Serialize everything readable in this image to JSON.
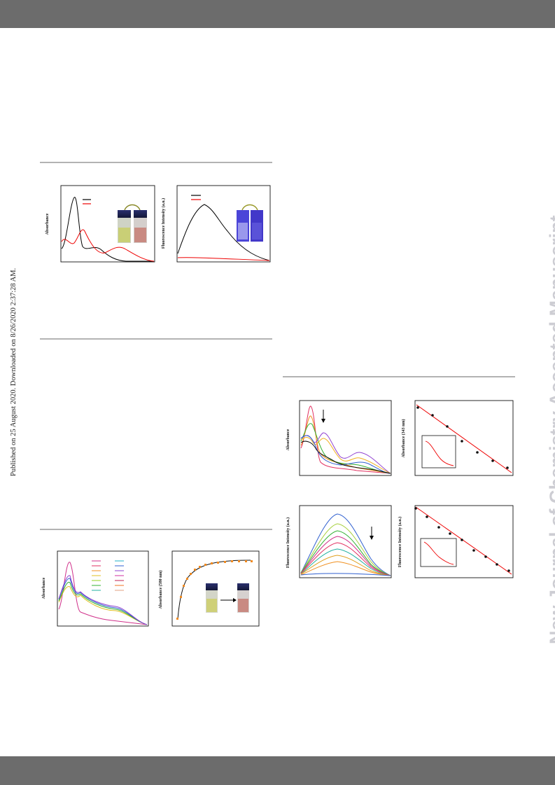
{
  "side_note": "Published on 25 August 2020. Downloaded on 8/26/2020 2:37:28 AM.",
  "watermark": "New Journal of Chemistry Accepted Manuscript",
  "panels": {
    "uv_pair": {
      "ylabel": "Absorbance"
    },
    "fl_pair": {
      "ylabel": "Fluorescence Intensity (a.u.)"
    },
    "uv_titration": {
      "ylabel": "Absorbance"
    },
    "abs_580": {
      "ylabel": "Absorbance (580 nm)"
    },
    "uv_decrease": {
      "ylabel": "Absorbance"
    },
    "abs_343": {
      "ylabel": "Absorbance (343 nm)"
    },
    "fl_decrease": {
      "ylabel": "Fluorescence Intensity (a.u.)"
    },
    "fl_linear": {
      "ylabel": "Fluorescence Intensity (a.u.)"
    }
  },
  "colors": {
    "bars": "#6c6c6c",
    "watermark": "#cdcdd3",
    "rule": "#b3b3b3"
  }
}
